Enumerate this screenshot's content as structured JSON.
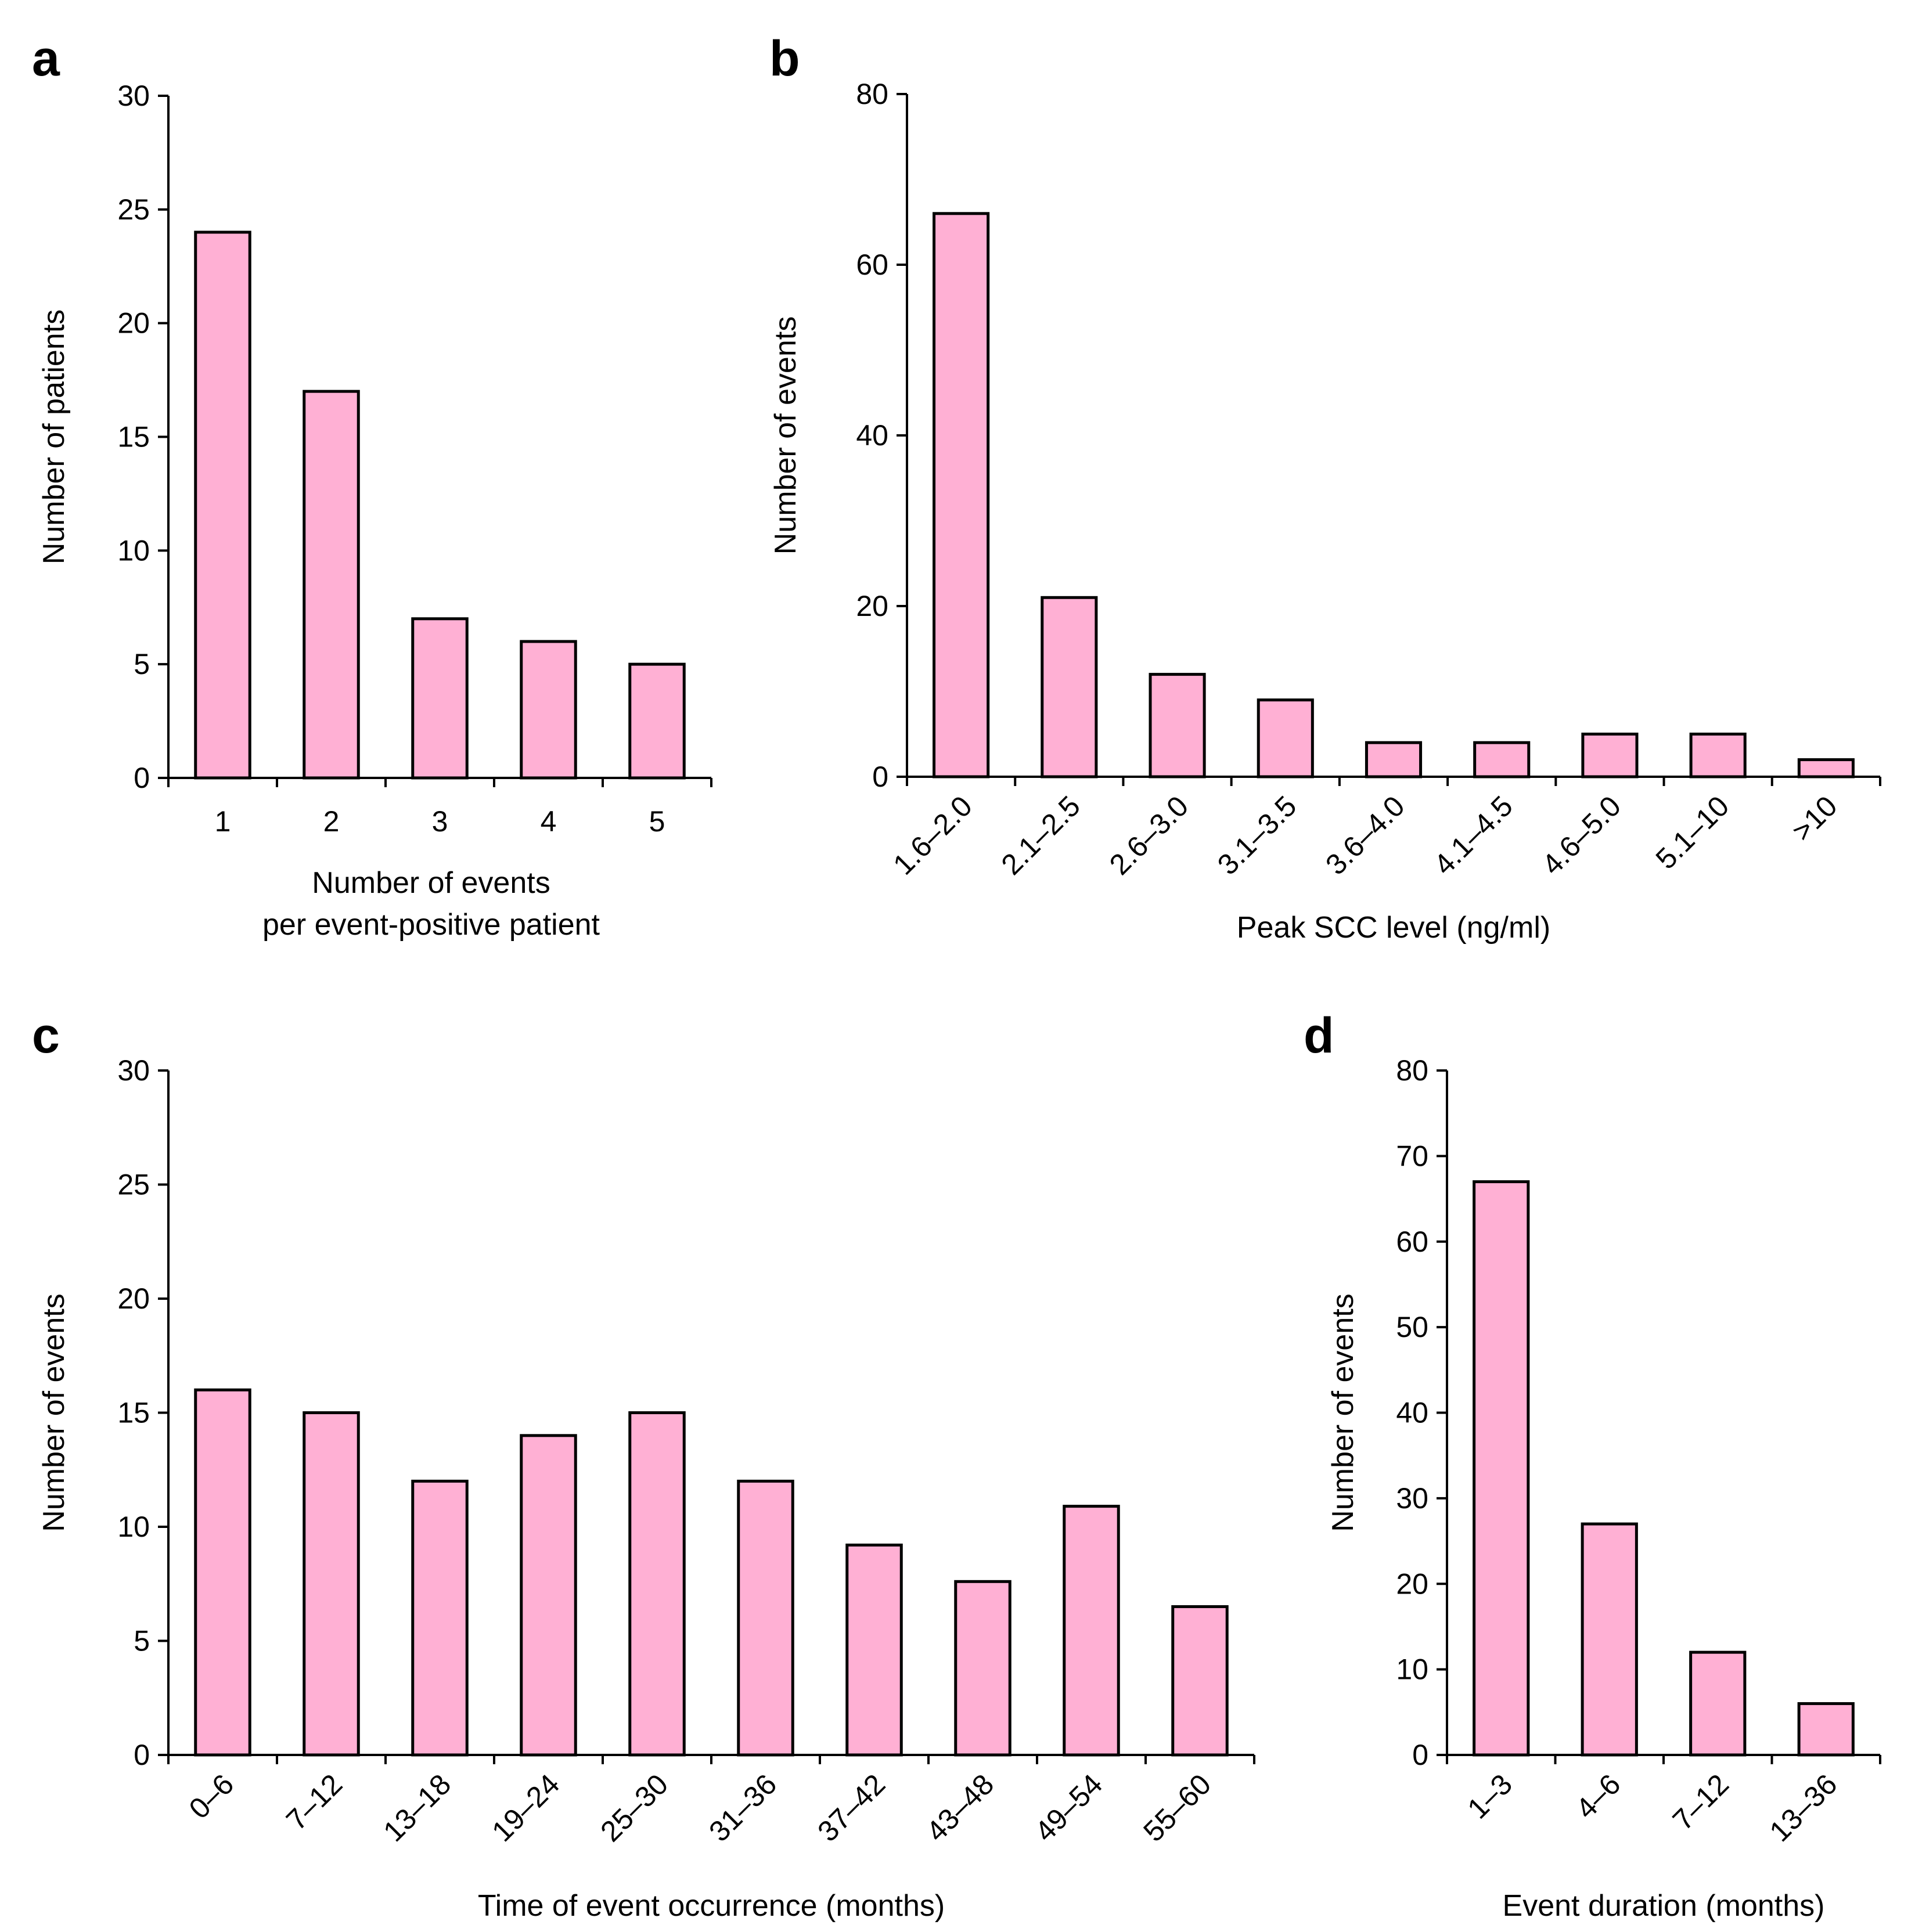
{
  "colors": {
    "bar_fill": "#ffb0d4",
    "bar_stroke": "#000000"
  },
  "chart_data": [
    {
      "panel": "a",
      "type": "bar",
      "categories": [
        "1",
        "2",
        "3",
        "4",
        "5"
      ],
      "values": [
        24,
        17,
        7,
        6,
        5
      ],
      "ylabel": "Number of patients",
      "xlabel_lines": [
        "Number of events",
        "per event-positive patient"
      ],
      "ylim": [
        0,
        30
      ],
      "yticks": [
        0,
        5,
        10,
        15,
        20,
        25,
        30
      ],
      "rotate_labels": false,
      "grid": false
    },
    {
      "panel": "b",
      "type": "bar",
      "categories": [
        "1.6–2.0",
        "2.1–2.5",
        "2.6–3.0",
        "3.1–3.5",
        "3.6–4.0",
        "4.1–4.5",
        "4.6–5.0",
        "5.1–10",
        ">10"
      ],
      "values": [
        66,
        21,
        12,
        9,
        4,
        4,
        5,
        5,
        2
      ],
      "ylabel": "Number of events",
      "xlabel_lines": [
        "Peak SCC level (ng/ml)"
      ],
      "ylim": [
        0,
        80
      ],
      "yticks": [
        0,
        20,
        40,
        60,
        80
      ],
      "rotate_labels": true,
      "grid": false
    },
    {
      "panel": "c",
      "type": "bar",
      "categories": [
        "0–6",
        "7–12",
        "13–18",
        "19–24",
        "25–30",
        "31–36",
        "37–42",
        "43–48",
        "49–54",
        "55–60"
      ],
      "values": [
        16,
        15,
        12,
        14,
        15,
        12,
        9.2,
        7.6,
        10.9,
        6.5
      ],
      "ylabel": "Number of events",
      "xlabel_lines": [
        "Time of event occurrence (months)"
      ],
      "ylim": [
        0,
        30
      ],
      "yticks": [
        0,
        5,
        10,
        15,
        20,
        25,
        30
      ],
      "rotate_labels": true,
      "grid": false
    },
    {
      "panel": "d",
      "type": "bar",
      "categories": [
        "1–3",
        "4–6",
        "7–12",
        "13–36"
      ],
      "values": [
        67,
        27,
        12,
        6
      ],
      "ylabel": "Number of events",
      "xlabel_lines": [
        "Event duration (months)"
      ],
      "ylim": [
        0,
        80
      ],
      "yticks": [
        0,
        10,
        20,
        30,
        40,
        50,
        60,
        70,
        80
      ],
      "rotate_labels": true,
      "grid": false
    }
  ]
}
